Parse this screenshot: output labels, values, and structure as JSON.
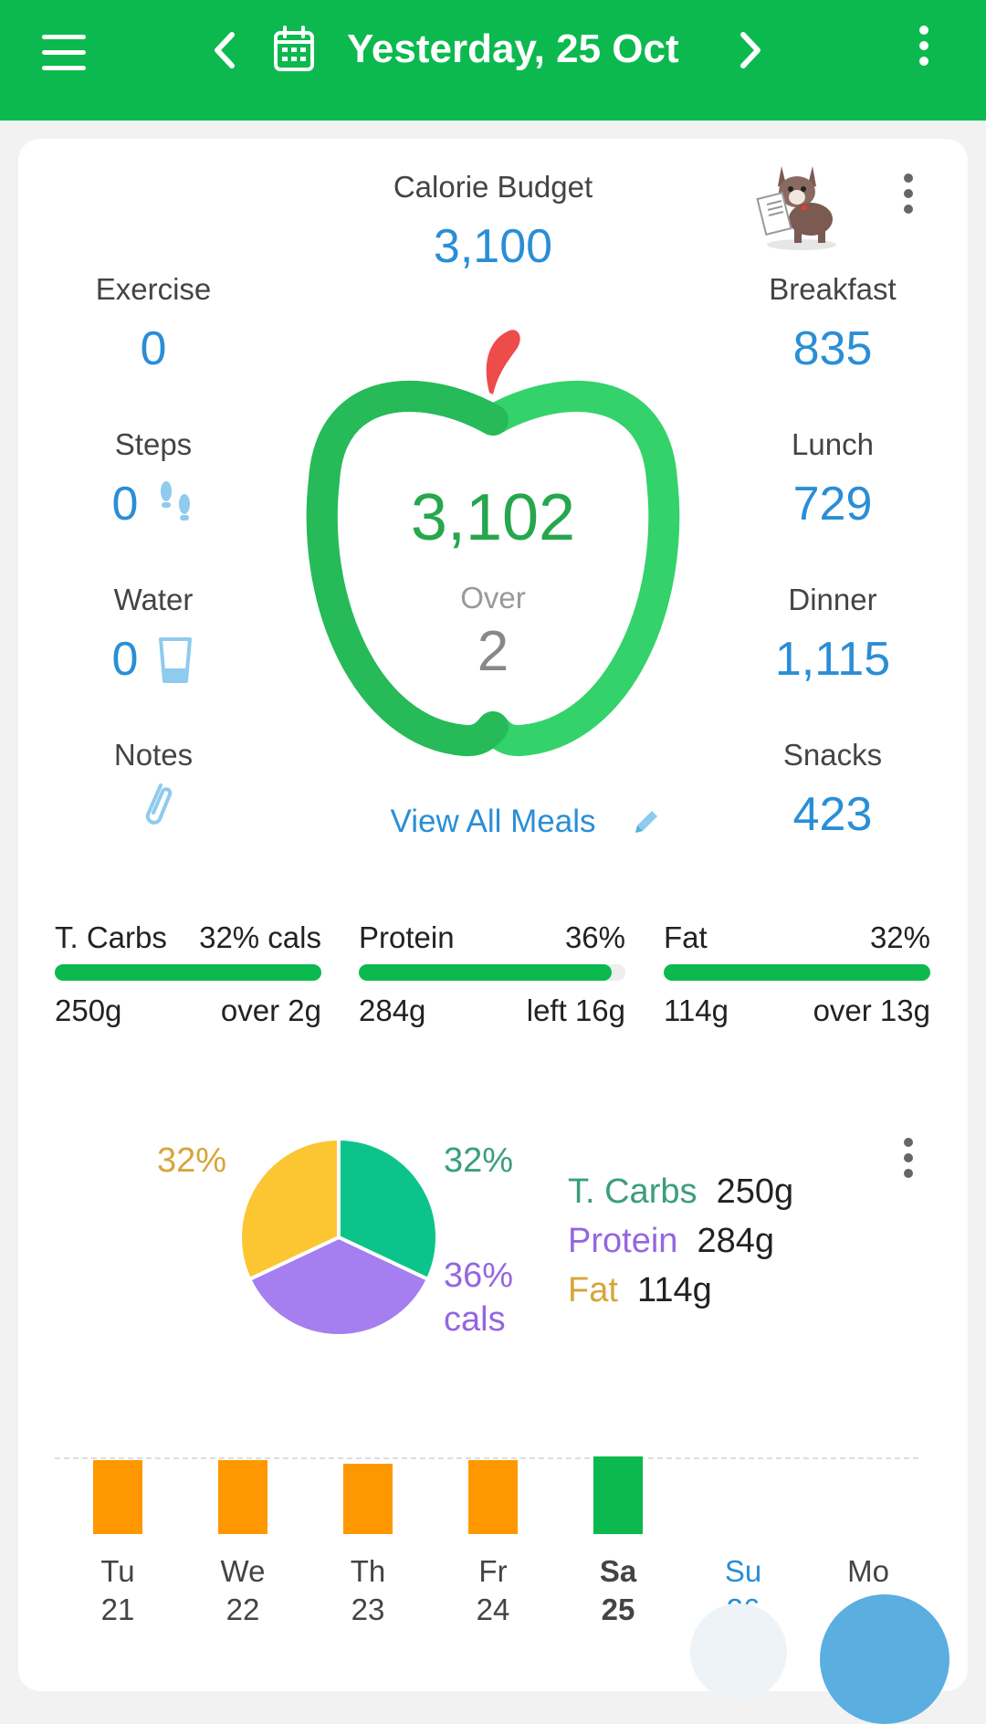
{
  "header": {
    "date_title": "Yesterday, 25 Oct",
    "bg_color": "#0cb94e"
  },
  "summary": {
    "budget_label": "Calorie Budget",
    "budget_value": "3,100",
    "exercise_label": "Exercise",
    "exercise_value": "0",
    "steps_label": "Steps",
    "steps_value": "0",
    "water_label": "Water",
    "water_value": "0",
    "notes_label": "Notes",
    "total_value": "3,102",
    "over_label": "Over",
    "over_value": "2",
    "view_all_label": "View All Meals",
    "meals": [
      {
        "label": "Breakfast",
        "value": "835"
      },
      {
        "label": "Lunch",
        "value": "729"
      },
      {
        "label": "Dinner",
        "value": "1,115"
      },
      {
        "label": "Snacks",
        "value": "423"
      }
    ]
  },
  "macros": [
    {
      "name": "T. Carbs",
      "pct": "32% cals",
      "amount": "250g",
      "status": "over 2g",
      "fill": 1.0
    },
    {
      "name": "Protein",
      "pct": "36%",
      "amount": "284g",
      "status": "left 16g",
      "fill": 0.95
    },
    {
      "name": "Fat",
      "pct": "32%",
      "amount": "114g",
      "status": "over 13g",
      "fill": 1.0
    }
  ],
  "chart_data": {
    "type": "pie",
    "slices": [
      {
        "name": "T. Carbs",
        "value": 32,
        "label": "32%",
        "color": "#0cc48b"
      },
      {
        "name": "Protein",
        "value": 36,
        "label": "36%",
        "color": "#a57ef0"
      },
      {
        "name": "Fat",
        "value": 32,
        "label": "32%",
        "color": "#fcc633"
      }
    ],
    "protein_unit": "cals",
    "legend": [
      {
        "name": "T. Carbs",
        "amount": "250g",
        "color": "#3a9e7a"
      },
      {
        "name": "Protein",
        "amount": "284g",
        "color": "#9566e0"
      },
      {
        "name": "Fat",
        "amount": "114g",
        "color": "#d7a53a"
      }
    ]
  },
  "week": [
    {
      "day": "Tu",
      "date": "21",
      "level": 0.88,
      "color": "#ff9800",
      "current": false,
      "future": false
    },
    {
      "day": "We",
      "date": "22",
      "level": 0.88,
      "color": "#ff9800",
      "current": false,
      "future": false
    },
    {
      "day": "Th",
      "date": "23",
      "level": 0.84,
      "color": "#ff9800",
      "current": false,
      "future": false
    },
    {
      "day": "Fr",
      "date": "24",
      "level": 0.88,
      "color": "#ff9800",
      "current": false,
      "future": false
    },
    {
      "day": "Sa",
      "date": "25",
      "level": 0.92,
      "color": "#0cb94e",
      "current": true,
      "future": false
    },
    {
      "day": "Su",
      "date": "26",
      "level": 0,
      "color": "#2a8ed6",
      "current": false,
      "future": true
    },
    {
      "day": "Mo",
      "date": "",
      "level": 0,
      "color": "#444444",
      "current": false,
      "future": true
    }
  ]
}
